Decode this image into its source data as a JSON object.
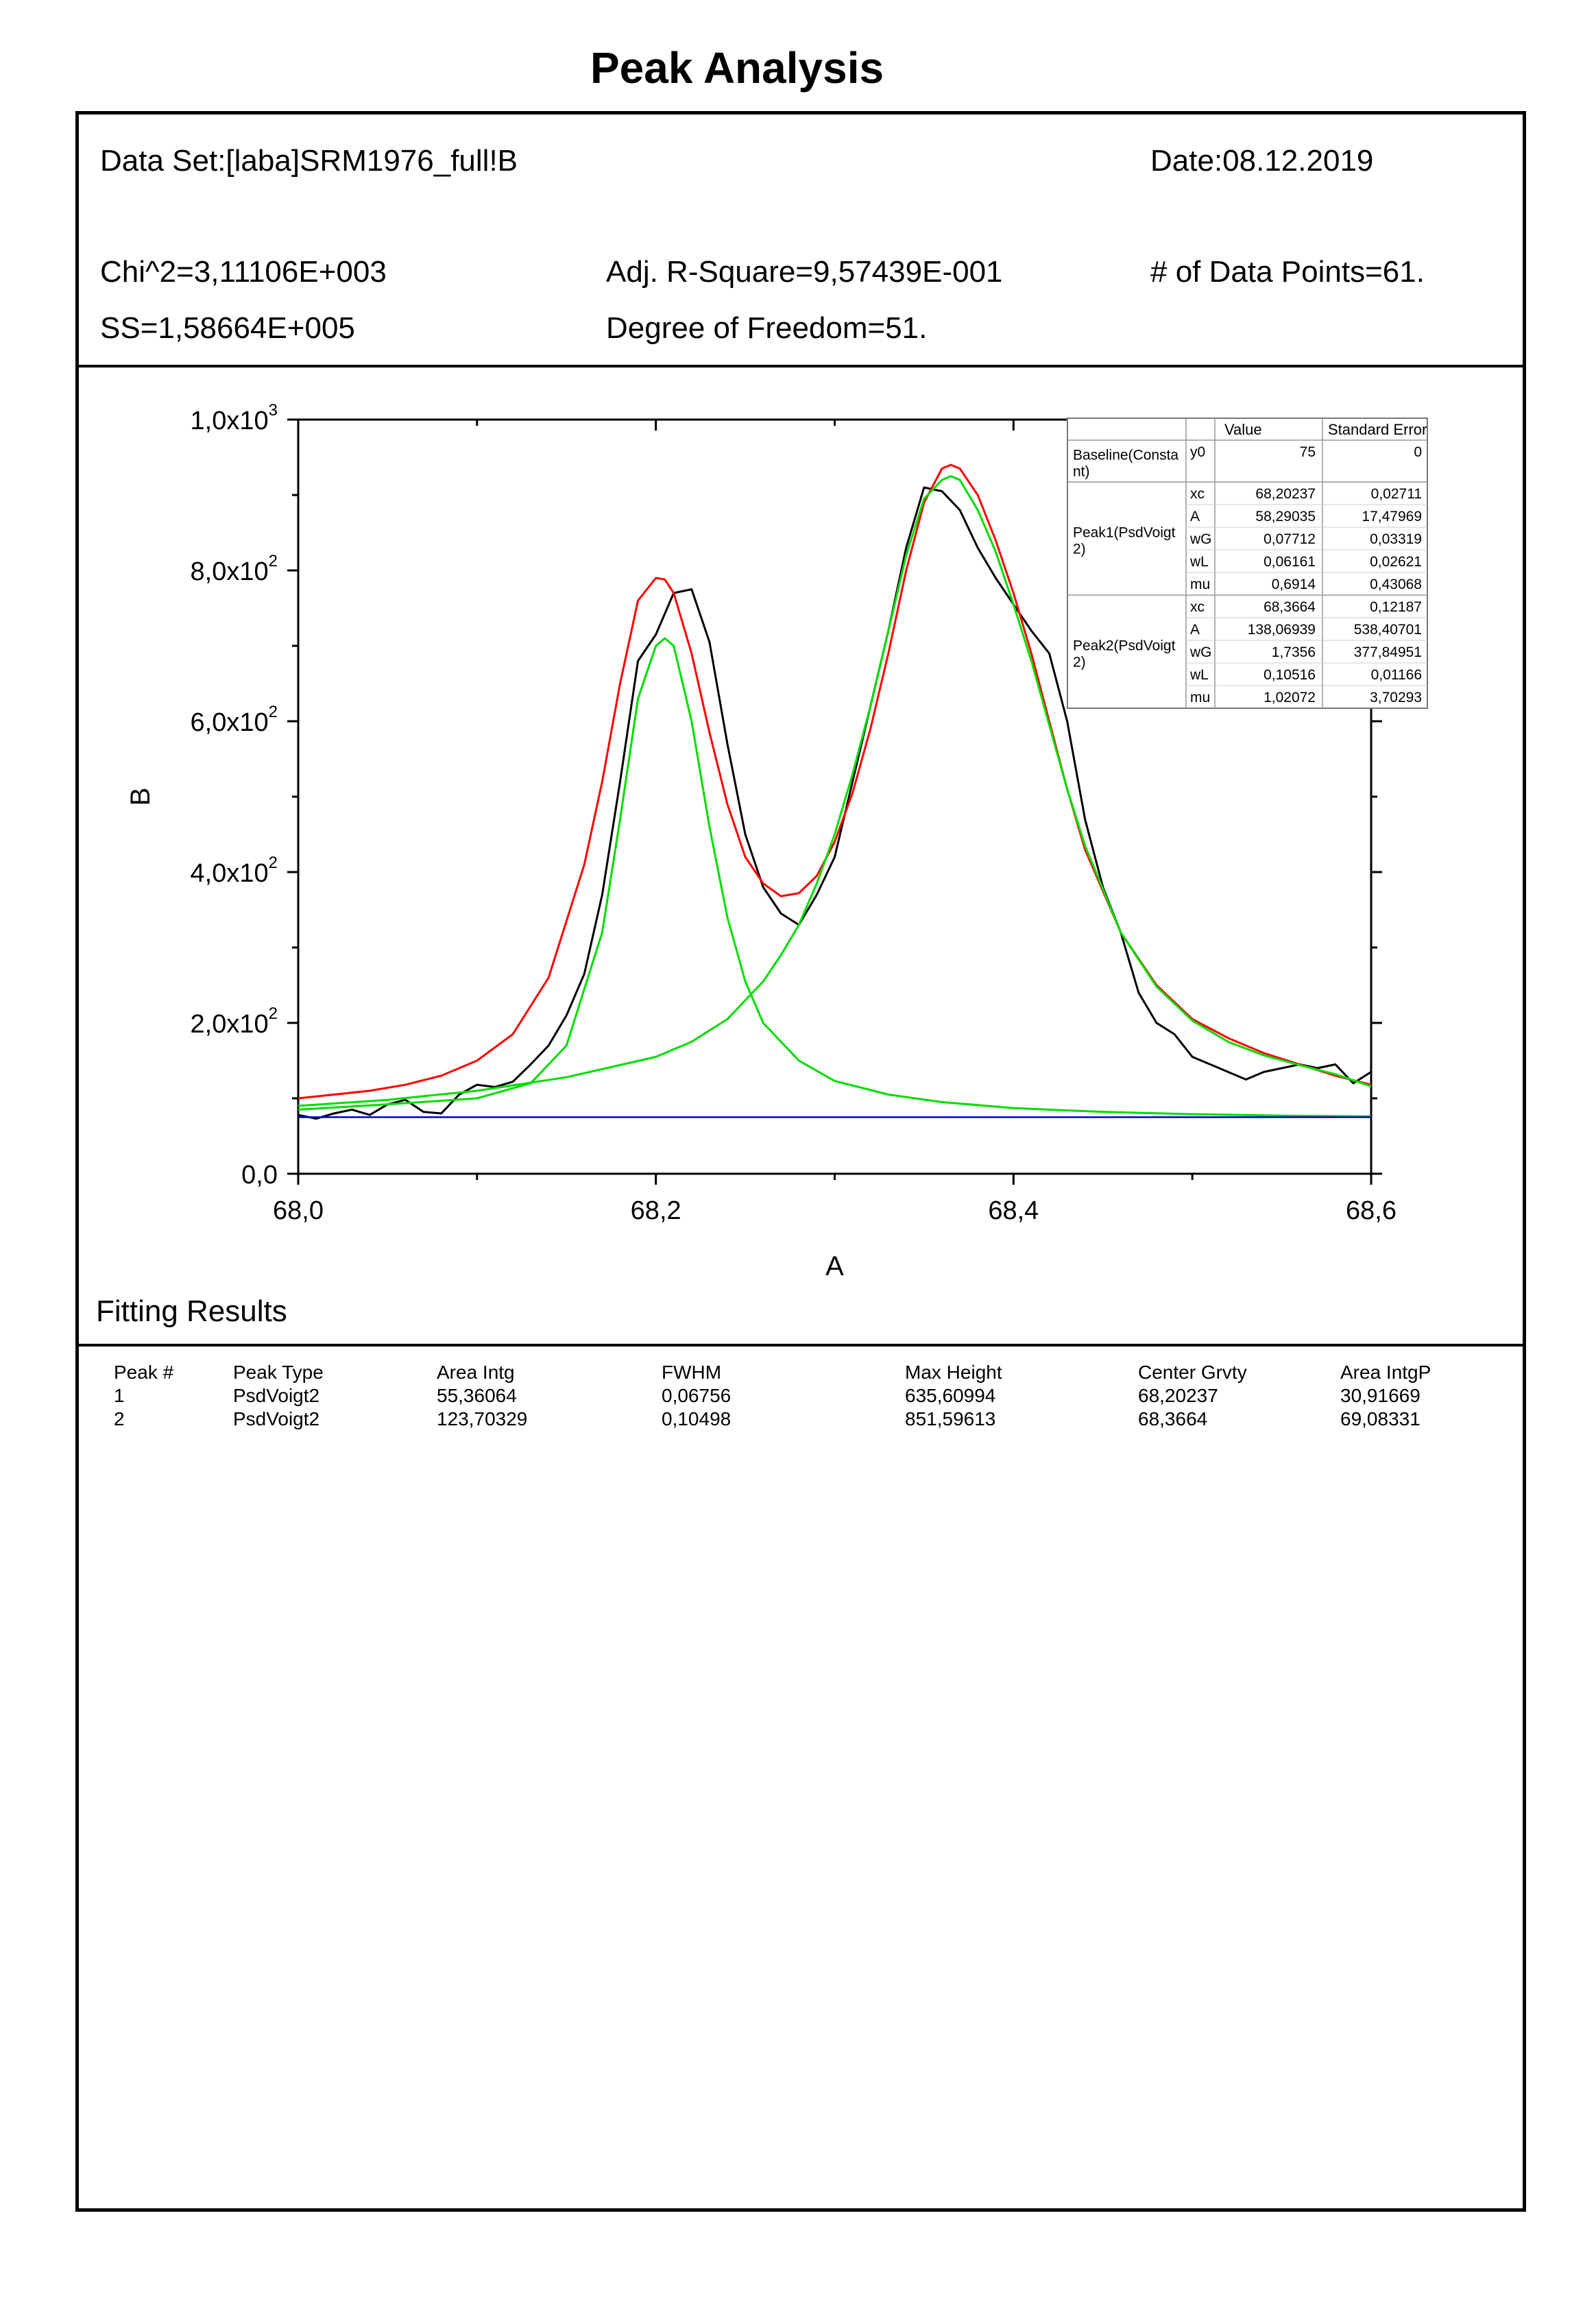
{
  "title": "Peak Analysis",
  "header": {
    "dataset": "Data Set:[laba]SRM1976_full!B",
    "date": "Date:08.12.2019",
    "chi2": "Chi^2=3,11106E+003",
    "adj_r2": "Adj. R-Square=9,57439E-001",
    "npoints": "# of Data Points=61.",
    "ss": "SS=1,58664E+005",
    "dof": "Degree of Freedom=51."
  },
  "colors": {
    "data": "#000000",
    "cumulative_fit": "#ff0000",
    "peaks": "#00dd00",
    "baseline": "#0000cc"
  },
  "chart_data": {
    "type": "line",
    "xlabel": "A",
    "ylabel": "B",
    "xlim": [
      68.0,
      68.6
    ],
    "ylim": [
      0,
      1000
    ],
    "x_ticks": [
      68.0,
      68.2,
      68.4,
      68.6
    ],
    "x_tick_labels": [
      "68,0",
      "68,2",
      "68,4",
      "68,6"
    ],
    "y_ticks": [
      0,
      200,
      400,
      600,
      800,
      1000
    ],
    "y_tick_labels": [
      {
        "mant": "0,0",
        "exp": ""
      },
      {
        "mant": "2,0x10",
        "exp": "2"
      },
      {
        "mant": "4,0x10",
        "exp": "2"
      },
      {
        "mant": "6,0x10",
        "exp": "2"
      },
      {
        "mant": "8,0x10",
        "exp": "2"
      },
      {
        "mant": "1,0x10",
        "exp": "3"
      }
    ],
    "series": [
      {
        "x": [
          68.0,
          68.01,
          68.02,
          68.03,
          68.04,
          68.05,
          68.06,
          68.07,
          68.08,
          68.09,
          68.1,
          68.11,
          68.12,
          68.13,
          68.14,
          68.15,
          68.16,
          68.17,
          68.18,
          68.19,
          68.2,
          68.21,
          68.22,
          68.23,
          68.24,
          68.25,
          68.26,
          68.27,
          68.28,
          68.29,
          68.3,
          68.31,
          68.32,
          68.33,
          68.34,
          68.35,
          68.36,
          68.37,
          68.38,
          68.39,
          68.4,
          68.41,
          68.42,
          68.43,
          68.44,
          68.45,
          68.46,
          68.47,
          68.48,
          68.49,
          68.5,
          68.51,
          68.52,
          68.53,
          68.54,
          68.55,
          68.56,
          68.57,
          68.58,
          68.59,
          68.6
        ],
        "y": [
          78,
          73,
          80,
          85,
          78,
          92,
          98,
          82,
          80,
          105,
          118,
          115,
          122,
          145,
          170,
          210,
          265,
          370,
          520,
          680,
          715,
          770,
          775,
          705,
          570,
          450,
          380,
          345,
          330,
          370,
          420,
          520,
          620,
          720,
          830,
          910,
          905,
          880,
          830,
          790,
          755,
          720,
          690,
          600,
          470,
          380,
          320,
          240,
          200,
          185,
          155,
          145,
          135,
          125,
          135,
          140,
          145,
          140,
          145,
          120,
          135
        ]
      },
      {
        "x": [
          68.0,
          68.02,
          68.04,
          68.06,
          68.08,
          68.1,
          68.12,
          68.14,
          68.16,
          68.17,
          68.18,
          68.19,
          68.2,
          68.205,
          68.21,
          68.22,
          68.23,
          68.24,
          68.25,
          68.26,
          68.27,
          68.28,
          68.29,
          68.3,
          68.31,
          68.32,
          68.33,
          68.34,
          68.35,
          68.36,
          68.365,
          68.37,
          68.38,
          68.39,
          68.4,
          68.41,
          68.42,
          68.43,
          68.44,
          68.46,
          68.48,
          68.5,
          68.52,
          68.54,
          68.56,
          68.58,
          68.6
        ],
        "y": [
          100,
          105,
          110,
          118,
          130,
          150,
          185,
          260,
          410,
          520,
          650,
          760,
          790,
          788,
          770,
          690,
          585,
          490,
          420,
          385,
          368,
          372,
          395,
          440,
          505,
          590,
          690,
          800,
          890,
          935,
          940,
          935,
          900,
          840,
          770,
          690,
          600,
          510,
          430,
          320,
          250,
          205,
          180,
          160,
          145,
          130,
          118
        ]
      },
      {
        "x": [
          68.0,
          68.05,
          68.1,
          68.13,
          68.15,
          68.17,
          68.18,
          68.19,
          68.2,
          68.205,
          68.21,
          68.22,
          68.23,
          68.24,
          68.25,
          68.26,
          68.28,
          68.3,
          68.33,
          68.36,
          68.4,
          68.45,
          68.5,
          68.55,
          68.6
        ],
        "y": [
          85,
          92,
          100,
          120,
          170,
          320,
          470,
          630,
          700,
          710,
          700,
          600,
          460,
          340,
          255,
          200,
          150,
          123,
          105,
          95,
          87,
          82,
          79,
          77,
          76
        ]
      },
      {
        "x": [
          68.0,
          68.05,
          68.1,
          68.15,
          68.2,
          68.22,
          68.24,
          68.26,
          68.27,
          68.28,
          68.29,
          68.3,
          68.31,
          68.32,
          68.33,
          68.34,
          68.35,
          68.36,
          68.365,
          68.37,
          68.38,
          68.39,
          68.4,
          68.41,
          68.42,
          68.43,
          68.44,
          68.46,
          68.48,
          68.5,
          68.52,
          68.54,
          68.56,
          68.58,
          68.6
        ],
        "y": [
          90,
          98,
          110,
          128,
          155,
          175,
          205,
          255,
          290,
          330,
          385,
          450,
          530,
          620,
          720,
          820,
          895,
          920,
          925,
          920,
          880,
          825,
          755,
          680,
          595,
          510,
          435,
          320,
          248,
          203,
          175,
          157,
          144,
          132,
          116
        ]
      },
      {
        "x": [
          68.0,
          68.6
        ],
        "y": [
          75,
          75
        ]
      }
    ],
    "params_table": {
      "headers": [
        "",
        "",
        "Value",
        "Standard Error"
      ],
      "groups": [
        {
          "name_lines": [
            "Baseline(Consta",
            "nt)"
          ],
          "rows": [
            [
              "y0",
              "75",
              "0"
            ]
          ]
        },
        {
          "name_lines": [
            "Peak1(PsdVoigt",
            "2)"
          ],
          "rows": [
            [
              "xc",
              "68,20237",
              "0,02711"
            ],
            [
              "A",
              "58,29035",
              "17,47969"
            ],
            [
              "wG",
              "0,07712",
              "0,03319"
            ],
            [
              "wL",
              "0,06161",
              "0,02621"
            ],
            [
              "mu",
              "0,6914",
              "0,43068"
            ]
          ]
        },
        {
          "name_lines": [
            "Peak2(PsdVoigt",
            "2)"
          ],
          "rows": [
            [
              "xc",
              "68,3664",
              "0,12187"
            ],
            [
              "A",
              "138,06939",
              "538,40701"
            ],
            [
              "wG",
              "1,7356",
              "377,84951"
            ],
            [
              "wL",
              "0,10516",
              "0,01166"
            ],
            [
              "mu",
              "1,02072",
              "3,70293"
            ]
          ]
        }
      ]
    }
  },
  "fitting_results": {
    "title": "Fitting Results",
    "headers": [
      "Peak #",
      "Peak Type",
      "Area Intg",
      "FWHM",
      "Max Height",
      "Center Grvty",
      "Area IntgP"
    ],
    "rows": [
      [
        "1",
        "PsdVoigt2",
        "55,36064",
        "0,06756",
        "635,60994",
        "68,20237",
        "30,91669"
      ],
      [
        "2",
        "PsdVoigt2",
        "123,70329",
        "0,10498",
        "851,59613",
        "68,3664",
        "69,08331"
      ]
    ]
  }
}
